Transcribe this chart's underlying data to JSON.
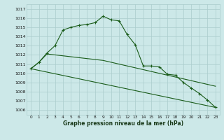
{
  "title": "Graphe pression niveau de la mer (hPa)",
  "background_color": "#cce8e8",
  "grid_color": "#aacccc",
  "line_color": "#1a5c1a",
  "xlim": [
    -0.5,
    23.5
  ],
  "ylim": [
    1005.5,
    1017.5
  ],
  "yticks": [
    1006,
    1007,
    1008,
    1009,
    1010,
    1011,
    1012,
    1013,
    1014,
    1015,
    1016,
    1017
  ],
  "xticks": [
    0,
    1,
    2,
    3,
    4,
    5,
    6,
    7,
    8,
    9,
    10,
    11,
    12,
    13,
    14,
    15,
    16,
    17,
    18,
    19,
    20,
    21,
    22,
    23
  ],
  "line1_x": [
    0,
    1,
    2,
    3,
    4,
    5,
    6,
    7,
    8,
    9,
    10,
    11,
    12,
    13,
    14,
    15,
    16,
    17,
    18,
    19,
    20,
    21,
    22,
    23
  ],
  "line1_y": [
    1010.5,
    1011.2,
    1012.2,
    1013.0,
    1014.7,
    1015.0,
    1015.2,
    1015.3,
    1015.5,
    1016.2,
    1015.8,
    1015.7,
    1014.2,
    1013.1,
    1010.8,
    1010.8,
    1010.7,
    1009.9,
    1009.8,
    1009.0,
    1008.4,
    1007.8,
    1007.1,
    1006.3
  ],
  "line2_x": [
    0,
    1,
    2,
    3,
    4,
    5,
    6,
    7,
    8,
    9,
    10,
    11,
    12,
    13,
    14,
    15,
    16,
    17,
    18,
    19,
    20,
    21,
    22,
    23
  ],
  "line2_y": [
    1010.5,
    1011.2,
    1012.1,
    1012.0,
    1011.9,
    1011.8,
    1011.7,
    1011.6,
    1011.5,
    1011.4,
    1011.2,
    1011.0,
    1010.8,
    1010.6,
    1010.4,
    1010.2,
    1010.0,
    1009.8,
    1009.6,
    1009.4,
    1009.2,
    1009.0,
    1008.8,
    1008.6
  ],
  "line3_x": [
    0,
    23
  ],
  "line3_y": [
    1010.5,
    1006.3
  ]
}
